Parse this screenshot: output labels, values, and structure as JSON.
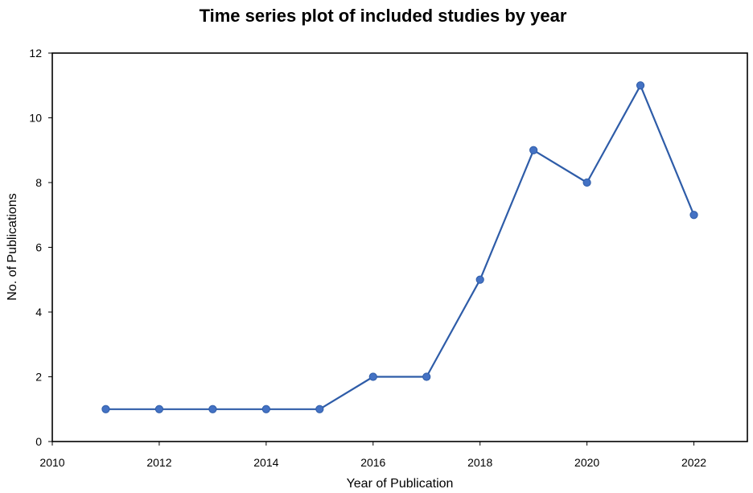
{
  "chart_data": {
    "type": "line",
    "title": "Time series plot of included studies by year",
    "xlabel": "Year of Publication",
    "ylabel": "No. of Publications",
    "x": [
      2011,
      2012,
      2013,
      2014,
      2015,
      2016,
      2017,
      2018,
      2019,
      2020,
      2021,
      2022
    ],
    "series": [
      {
        "values": [
          1,
          1,
          1,
          1,
          1,
          2,
          2,
          5,
          9,
          8,
          11,
          7
        ],
        "color": "#2E5CA8",
        "marker_color": "#4472C4"
      }
    ],
    "xlim": [
      2010,
      2023
    ],
    "ylim": [
      0,
      12
    ],
    "xticks": [
      "2010",
      "2012",
      "2014",
      "2016",
      "2018",
      "2020",
      "2022"
    ],
    "yticks": [
      "0",
      "2",
      "4",
      "6",
      "8",
      "10",
      "12"
    ],
    "grid": false,
    "legend": "none"
  }
}
